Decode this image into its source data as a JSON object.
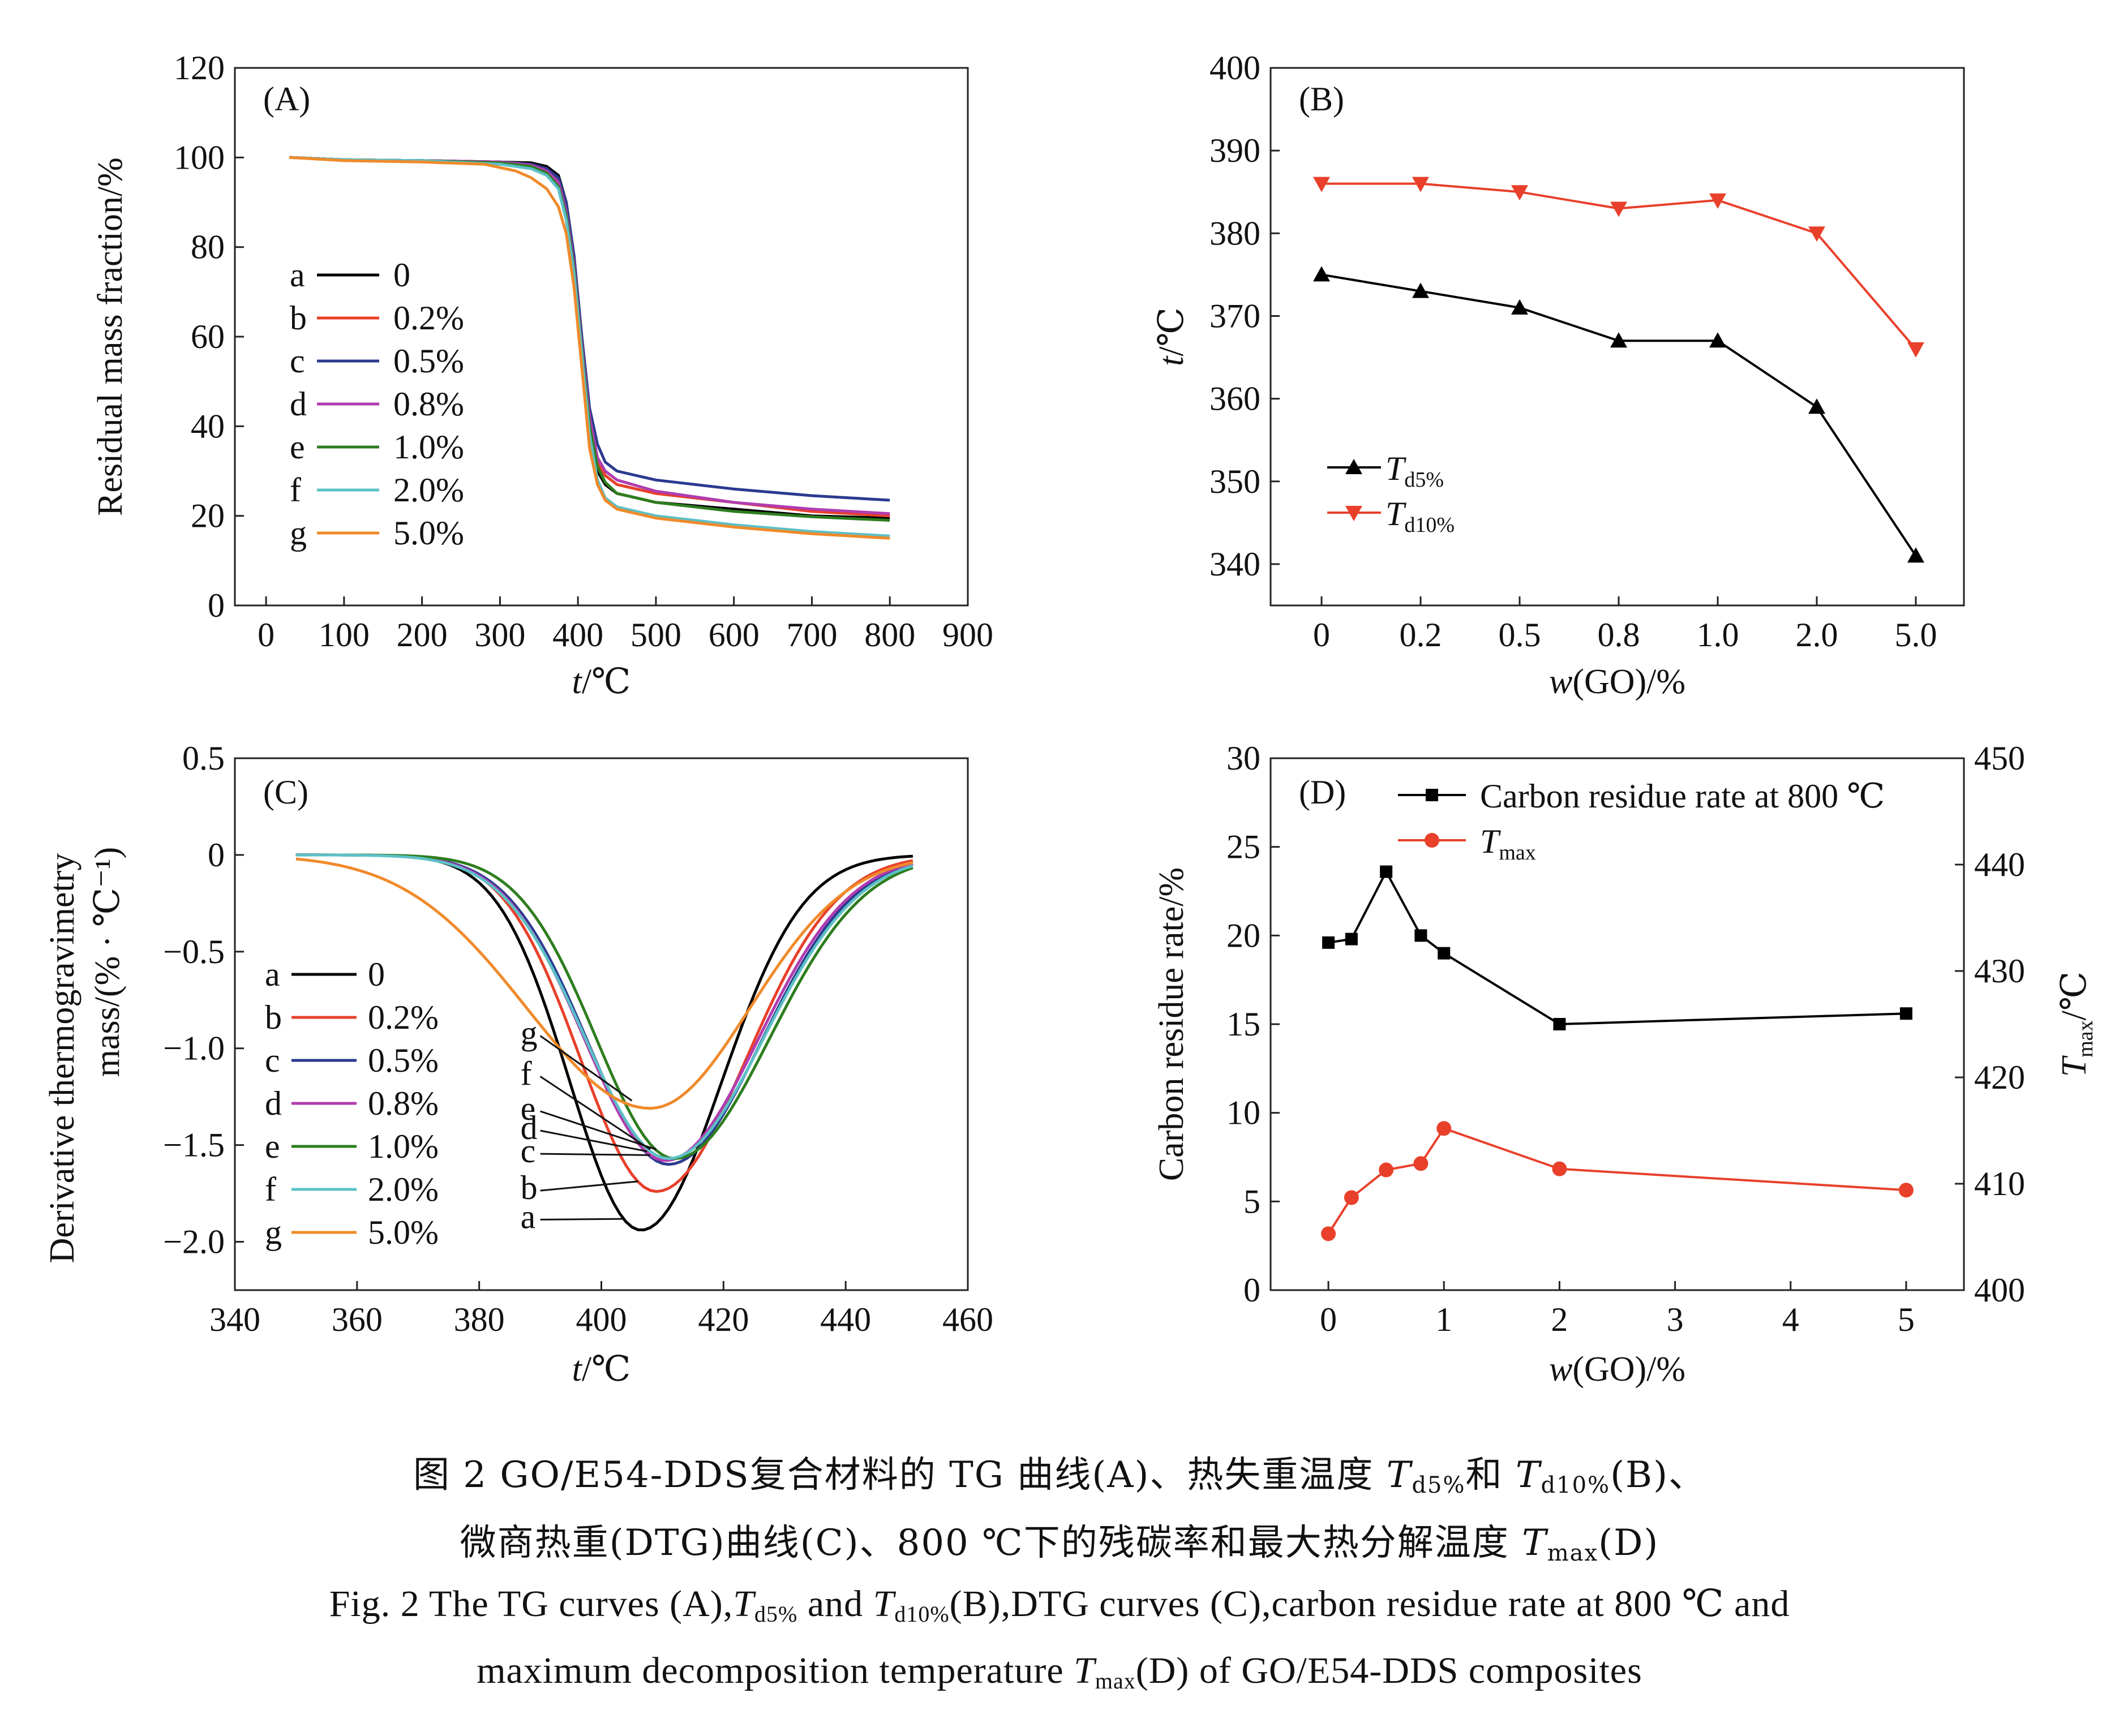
{
  "caption": {
    "cn_line1_prefix": "图 2   GO/E54-DDS复合材料的 TG 曲线(A)、热失重温度 ",
    "cn_line1_T": "T",
    "cn_line1_sub1": "d5%",
    "cn_line1_mid": "和 ",
    "cn_line1_T2": "T",
    "cn_line1_sub2": "d10%",
    "cn_line1_suffix": "(B)、",
    "cn_line2_prefix": "微商热重(DTG)曲线(C)、800 ℃下的残碳率和最大热分解温度 ",
    "cn_line2_T": "T",
    "cn_line2_sub": "max",
    "cn_line2_suffix": "(D)",
    "en_line1_prefix": "Fig. 2  The TG curves (A),",
    "en_line1_T": "T",
    "en_line1_sub1": "d5%",
    "en_line1_mid": " and ",
    "en_line1_T2": "T",
    "en_line1_sub2": "d10%",
    "en_line1_suffix": "(B),DTG curves (C),carbon residue rate at 800 ℃ and",
    "en_line2_prefix": "maximum decomposition temperature ",
    "en_line2_T": "T",
    "en_line2_sub": "max",
    "en_line2_suffix": "(D) of GO/E54-DDS composites"
  },
  "chart_data": [
    {
      "panel": "(A)",
      "type": "line",
      "xlabel_italic": "t",
      "xlabel_rest": "/℃",
      "ylabel": "Residual mass fraction/%",
      "xlim": [
        -40,
        900
      ],
      "ylim": [
        0,
        120
      ],
      "xticks": [
        0,
        100,
        200,
        300,
        400,
        500,
        600,
        700,
        800,
        900
      ],
      "yticks": [
        0,
        20,
        40,
        60,
        80,
        100,
        120
      ],
      "legend": [
        {
          "letter": "a",
          "label": "0",
          "color": "#000000"
        },
        {
          "letter": "b",
          "label": "0.2%",
          "color": "#e8402a"
        },
        {
          "letter": "c",
          "label": "0.5%",
          "color": "#2b3a8f"
        },
        {
          "letter": "d",
          "label": "0.8%",
          "color": "#b03cb0"
        },
        {
          "letter": "e",
          "label": "1.0%",
          "color": "#2e7d1f"
        },
        {
          "letter": "f",
          "label": "2.0%",
          "color": "#5cc0c6"
        },
        {
          "letter": "g",
          "label": "5.0%",
          "color": "#f08a2a"
        }
      ],
      "series": [
        {
          "name": "a",
          "points": [
            [
              30,
              100
            ],
            [
              100,
              99.5
            ],
            [
              200,
              99.3
            ],
            [
              300,
              99
            ],
            [
              340,
              98.8
            ],
            [
              360,
              98
            ],
            [
              375,
              96
            ],
            [
              385,
              90
            ],
            [
              395,
              78
            ],
            [
              405,
              58
            ],
            [
              415,
              40
            ],
            [
              425,
              30
            ],
            [
              435,
              27
            ],
            [
              450,
              25
            ],
            [
              500,
              23
            ],
            [
              600,
              21.5
            ],
            [
              700,
              20
            ],
            [
              800,
              19.5
            ]
          ]
        },
        {
          "name": "b",
          "points": [
            [
              30,
              100
            ],
            [
              100,
              99.5
            ],
            [
              200,
              99.3
            ],
            [
              300,
              99
            ],
            [
              340,
              98.5
            ],
            [
              360,
              97.5
            ],
            [
              375,
              95
            ],
            [
              385,
              89
            ],
            [
              395,
              77
            ],
            [
              405,
              58
            ],
            [
              415,
              41
            ],
            [
              425,
              32
            ],
            [
              435,
              29
            ],
            [
              450,
              27
            ],
            [
              500,
              25
            ],
            [
              600,
              23
            ],
            [
              700,
              21
            ],
            [
              800,
              20
            ]
          ]
        },
        {
          "name": "c",
          "points": [
            [
              30,
              100
            ],
            [
              100,
              99.5
            ],
            [
              200,
              99.3
            ],
            [
              300,
              99
            ],
            [
              340,
              98.5
            ],
            [
              360,
              97.5
            ],
            [
              375,
              95.5
            ],
            [
              385,
              90
            ],
            [
              395,
              78
            ],
            [
              405,
              60
            ],
            [
              415,
              44
            ],
            [
              425,
              36
            ],
            [
              435,
              32
            ],
            [
              450,
              30
            ],
            [
              500,
              28
            ],
            [
              600,
              26
            ],
            [
              700,
              24.5
            ],
            [
              800,
              23.5
            ]
          ]
        },
        {
          "name": "d",
          "points": [
            [
              30,
              100
            ],
            [
              100,
              99.5
            ],
            [
              200,
              99.3
            ],
            [
              300,
              99
            ],
            [
              340,
              98.3
            ],
            [
              360,
              97
            ],
            [
              375,
              94.5
            ],
            [
              385,
              88
            ],
            [
              395,
              76
            ],
            [
              405,
              58
            ],
            [
              415,
              42
            ],
            [
              425,
              33
            ],
            [
              435,
              30
            ],
            [
              450,
              28
            ],
            [
              500,
              25.5
            ],
            [
              600,
              23
            ],
            [
              700,
              21.5
            ],
            [
              800,
              20.5
            ]
          ]
        },
        {
          "name": "e",
          "points": [
            [
              30,
              100
            ],
            [
              100,
              99.5
            ],
            [
              200,
              99.3
            ],
            [
              300,
              98.8
            ],
            [
              340,
              98
            ],
            [
              360,
              96.5
            ],
            [
              375,
              93.5
            ],
            [
              385,
              87
            ],
            [
              395,
              75
            ],
            [
              405,
              57
            ],
            [
              415,
              40
            ],
            [
              425,
              31
            ],
            [
              435,
              27.5
            ],
            [
              450,
              25
            ],
            [
              500,
              23
            ],
            [
              600,
              21
            ],
            [
              700,
              19.8
            ],
            [
              800,
              19
            ]
          ]
        },
        {
          "name": "f",
          "points": [
            [
              30,
              100
            ],
            [
              100,
              99.5
            ],
            [
              200,
              99.3
            ],
            [
              300,
              98.5
            ],
            [
              340,
              97.5
            ],
            [
              360,
              96
            ],
            [
              375,
              93
            ],
            [
              385,
              86
            ],
            [
              395,
              74
            ],
            [
              405,
              56
            ],
            [
              415,
              38
            ],
            [
              425,
              28
            ],
            [
              435,
              24
            ],
            [
              450,
              22
            ],
            [
              500,
              20
            ],
            [
              600,
              18
            ],
            [
              700,
              16.5
            ],
            [
              800,
              15.5
            ]
          ]
        },
        {
          "name": "g",
          "points": [
            [
              30,
              100
            ],
            [
              100,
              99.3
            ],
            [
              200,
              99
            ],
            [
              280,
              98.5
            ],
            [
              320,
              97
            ],
            [
              340,
              95.5
            ],
            [
              360,
              93
            ],
            [
              375,
              89
            ],
            [
              385,
              83
            ],
            [
              395,
              71
            ],
            [
              405,
              53
            ],
            [
              415,
              35
            ],
            [
              425,
              27
            ],
            [
              435,
              23.5
            ],
            [
              450,
              21.5
            ],
            [
              500,
              19.5
            ],
            [
              600,
              17.5
            ],
            [
              700,
              16
            ],
            [
              800,
              15
            ]
          ]
        }
      ]
    },
    {
      "panel": "(B)",
      "type": "line",
      "xlabel_italic": "w",
      "xlabel_rest": "(GO)/%",
      "ylabel_italic": "t",
      "ylabel_rest": "/℃",
      "categories": [
        "0",
        "0.2",
        "0.5",
        "0.8",
        "1.0",
        "2.0",
        "5.0"
      ],
      "ylim": [
        335,
        400
      ],
      "yticks": [
        340,
        350,
        360,
        370,
        380,
        390,
        400
      ],
      "series": [
        {
          "name_T": "T",
          "name_sub": "d5%",
          "color": "#000000",
          "marker": "triangle-up",
          "values": [
            375,
            373,
            371,
            367,
            367,
            359,
            341
          ]
        },
        {
          "name_T": "T",
          "name_sub": "d10%",
          "color": "#e8402a",
          "marker": "triangle-down",
          "values": [
            386,
            386,
            385,
            383,
            384,
            380,
            366
          ]
        }
      ]
    },
    {
      "panel": "(C)",
      "type": "line",
      "xlabel_italic": "t",
      "xlabel_rest": "/℃",
      "ylabel_line1": "Derivative thermogravimetry",
      "ylabel_line2": "mass/(% · ℃⁻¹)",
      "xlim": [
        340,
        460
      ],
      "ylim": [
        -2.25,
        0.5
      ],
      "xticks": [
        340,
        360,
        380,
        400,
        420,
        440,
        460
      ],
      "yticks": [
        -2.0,
        -1.5,
        -1.0,
        -0.5,
        0,
        0.5
      ],
      "ytick_labels": [
        "−2.0",
        "−1.5",
        "−1.0",
        "−0.5",
        "0",
        "0.5"
      ],
      "legend": [
        {
          "letter": "a",
          "label": "0",
          "color": "#000000"
        },
        {
          "letter": "b",
          "label": "0.2%",
          "color": "#e8402a"
        },
        {
          "letter": "c",
          "label": "0.5%",
          "color": "#2b3a8f"
        },
        {
          "letter": "d",
          "label": "0.8%",
          "color": "#b03cb0"
        },
        {
          "letter": "e",
          "label": "1.0%",
          "color": "#2e7d1f"
        },
        {
          "letter": "f",
          "label": "2.0%",
          "color": "#5cc0c6"
        },
        {
          "letter": "g",
          "label": "5.0%",
          "color": "#f08a2a"
        }
      ],
      "peaks": [
        {
          "name": "a",
          "peak_x": 406.5,
          "peak_y": -1.94,
          "wl": 15,
          "wr": 17,
          "color": "#000000"
        },
        {
          "name": "b",
          "peak_x": 409,
          "peak_y": -1.74,
          "wl": 16,
          "wr": 19,
          "color": "#e8402a"
        },
        {
          "name": "c",
          "peak_x": 411,
          "peak_y": -1.6,
          "wl": 17,
          "wr": 19.5,
          "color": "#2b3a8f"
        },
        {
          "name": "d",
          "peak_x": 410.5,
          "peak_y": -1.58,
          "wl": 17,
          "wr": 19.5,
          "color": "#b03cb0"
        },
        {
          "name": "e",
          "peak_x": 412,
          "peak_y": -1.57,
          "wl": 16.5,
          "wr": 20,
          "color": "#2e7d1f"
        },
        {
          "name": "f",
          "peak_x": 411,
          "peak_y": -1.57,
          "wl": 17.5,
          "wr": 20,
          "color": "#5cc0c6"
        },
        {
          "name": "g",
          "peak_x": 408,
          "peak_y": -1.31,
          "wl": 26,
          "wr": 21,
          "color": "#f08a2a"
        }
      ],
      "annotations": [
        {
          "letter": "a",
          "tx": 390,
          "ty": -1.9
        },
        {
          "letter": "b",
          "tx": 390,
          "ty": -1.75
        },
        {
          "letter": "c",
          "tx": 390,
          "ty": -1.56
        },
        {
          "letter": "d",
          "tx": 390,
          "ty": -1.44
        },
        {
          "letter": "e",
          "tx": 390,
          "ty": -1.34
        },
        {
          "letter": "f",
          "tx": 390,
          "ty": -1.16
        },
        {
          "letter": "g",
          "tx": 390,
          "ty": -0.95
        }
      ]
    },
    {
      "panel": "(D)",
      "type": "line",
      "xlabel_italic": "w",
      "xlabel_rest": "(GO)/%",
      "ylabel_left": "Carbon residue rate/%",
      "ylabel_right_T": "T",
      "ylabel_right_sub": "max",
      "ylabel_right_rest": "/℃",
      "xlim": [
        -0.5,
        5.5
      ],
      "xticks": [
        0,
        1,
        2,
        3,
        4,
        5
      ],
      "ylim_left": [
        0,
        30
      ],
      "yticks_left": [
        0,
        5,
        10,
        15,
        20,
        25,
        30
      ],
      "ylim_right": [
        400,
        450
      ],
      "yticks_right": [
        400,
        410,
        420,
        430,
        440,
        450
      ],
      "series": [
        {
          "name": "Carbon residue rate at 800 ℃",
          "axis": "left",
          "color": "#000000",
          "marker": "square",
          "x": [
            0,
            0.2,
            0.5,
            0.8,
            1.0,
            2.0,
            5.0
          ],
          "values": [
            19.6,
            19.8,
            23.6,
            20.0,
            19.0,
            15.0,
            15.6
          ]
        },
        {
          "name_T": "T",
          "name_sub": "max",
          "axis": "right",
          "color": "#e8402a",
          "marker": "circle",
          "x": [
            0,
            0.2,
            0.5,
            0.8,
            1.0,
            2.0,
            5.0
          ],
          "values": [
            405.3,
            408.7,
            411.3,
            411.9,
            415.2,
            411.4,
            409.4
          ]
        }
      ]
    }
  ]
}
